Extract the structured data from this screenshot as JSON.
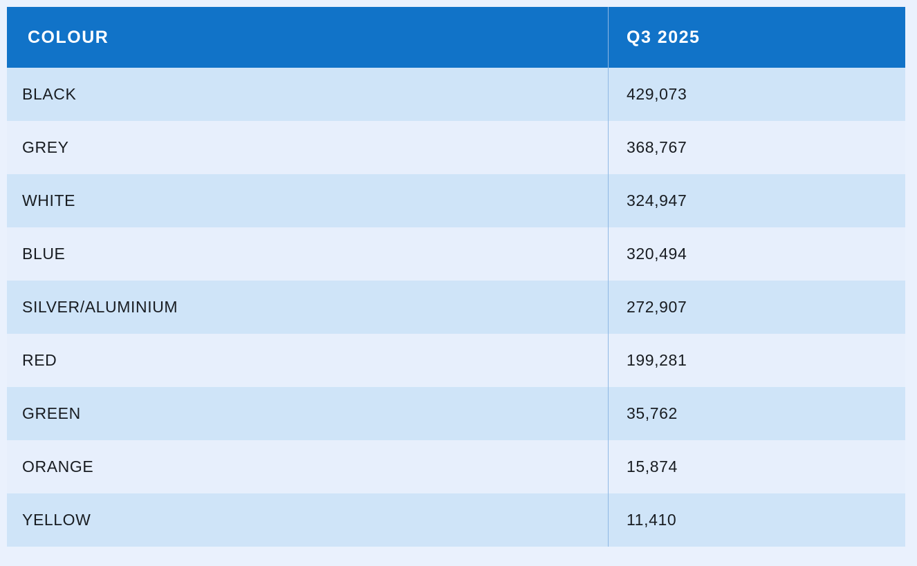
{
  "colors": {
    "page_bg": "#eaf1fd",
    "header_bg": "#1173c8",
    "row_dark": "#cfe4f8",
    "row_light": "#e7effc",
    "divider": "#8fb8e4",
    "text": "#181c21",
    "header_text": "#ffffff"
  },
  "table": {
    "header": {
      "col1": "COLOUR",
      "col2": "Q3 2025"
    },
    "rows": [
      {
        "colour": "BLACK",
        "value": "429,073"
      },
      {
        "colour": "GREY",
        "value": "368,767"
      },
      {
        "colour": "WHITE",
        "value": "324,947"
      },
      {
        "colour": "BLUE",
        "value": "320,494"
      },
      {
        "colour": "SILVER/ALUMINIUM",
        "value": "272,907"
      },
      {
        "colour": "RED",
        "value": "199,281"
      },
      {
        "colour": "GREEN",
        "value": "35,762"
      },
      {
        "colour": "ORANGE",
        "value": "15,874"
      },
      {
        "colour": "YELLOW",
        "value": "11,410"
      }
    ]
  },
  "chart_data": {
    "type": "table",
    "columns": [
      "COLOUR",
      "Q3 2025"
    ],
    "categories": [
      "BLACK",
      "GREY",
      "WHITE",
      "BLUE",
      "SILVER/ALUMINIUM",
      "RED",
      "GREEN",
      "ORANGE",
      "YELLOW"
    ],
    "values": [
      429073,
      368767,
      324947,
      320494,
      272907,
      199281,
      35762,
      15874,
      11410
    ],
    "title": "",
    "legend": "none",
    "layout_hints": {
      "header_fill": "#1173c8",
      "alternating_rows": true,
      "column_divider_x_ratio": 0.67
    }
  }
}
